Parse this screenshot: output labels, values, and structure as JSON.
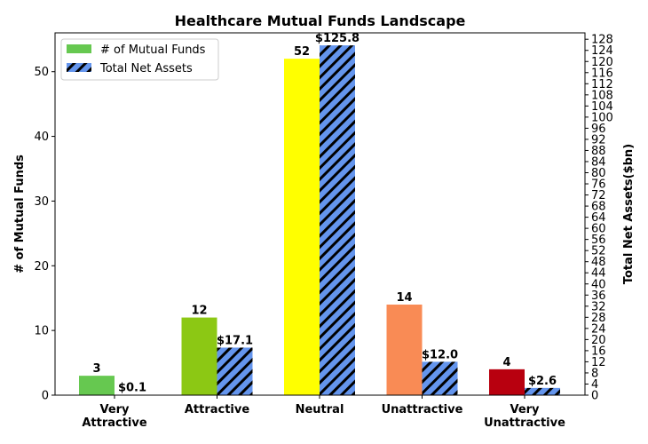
{
  "chart_data": {
    "type": "bar",
    "title": "Healthcare Mutual Funds Landscape",
    "ylabel": "# of Mutual Funds",
    "y2label": "Total Net Assets($bn)",
    "ylim": [
      0,
      56
    ],
    "y2lim": [
      0,
      130.3
    ],
    "yticks": [
      0,
      10,
      20,
      30,
      40,
      50
    ],
    "y2ticks": [
      0,
      4,
      8,
      12,
      16,
      20,
      24,
      28,
      32,
      36,
      40,
      44,
      48,
      52,
      56,
      60,
      64,
      68,
      72,
      76,
      80,
      84,
      88,
      92,
      96,
      100,
      104,
      108,
      112,
      116,
      120,
      124,
      128
    ],
    "categories": [
      [
        "Very",
        "Attractive"
      ],
      [
        "Attractive"
      ],
      [
        "Neutral"
      ],
      [
        "Unattractive"
      ],
      [
        "Very",
        "Unattractive"
      ]
    ],
    "series": [
      {
        "name": "# of Mutual Funds",
        "axis": "left",
        "values": [
          3,
          12,
          52,
          14,
          4
        ],
        "labels": [
          "3",
          "12",
          "52",
          "14",
          "4"
        ],
        "colors": [
          "#66c850",
          "#8cc814",
          "#ffff00",
          "#f98b55",
          "#b8000f"
        ],
        "legend_color": "#66c850"
      },
      {
        "name": "Total Net Assets",
        "axis": "right",
        "values": [
          0.1,
          17.1,
          125.8,
          12.0,
          2.6
        ],
        "labels": [
          "$0.1",
          "$17.1",
          "$125.8",
          "$12.0",
          "$2.6"
        ],
        "color": "#6495ed",
        "hatch": "//"
      }
    ],
    "legend_position": "top-left",
    "grid": false
  }
}
